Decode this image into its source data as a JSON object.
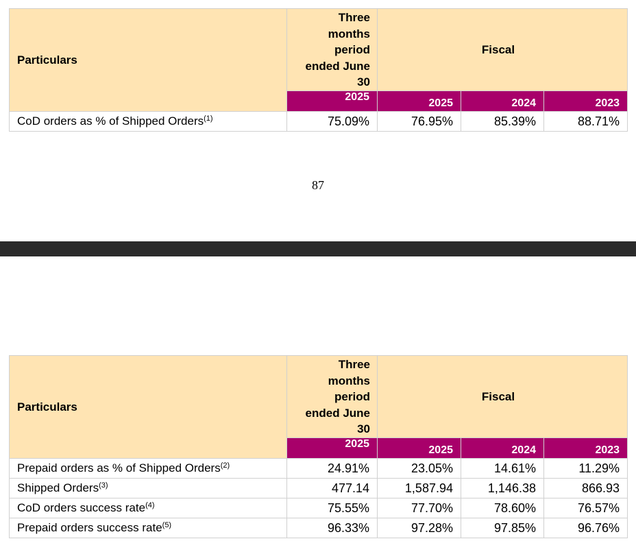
{
  "header": {
    "particulars": "Particulars",
    "three_months": [
      "Three",
      "months",
      "period",
      "ended June",
      "30"
    ],
    "fiscal": "Fiscal",
    "years": [
      "2025",
      "2025",
      "2024",
      "2023"
    ]
  },
  "table1": {
    "rows": [
      {
        "label": "CoD orders as % of Shipped Orders",
        "note": "(1)",
        "values": [
          "75.09%",
          "76.95%",
          "85.39%",
          "88.71%"
        ]
      }
    ]
  },
  "page_number": "87",
  "table2": {
    "rows": [
      {
        "label": "Prepaid orders as % of Shipped Orders",
        "note": "(2)",
        "values": [
          "24.91%",
          "23.05%",
          "14.61%",
          "11.29%"
        ]
      },
      {
        "label": "Shipped Orders",
        "note": "(3)",
        "values": [
          "477.14",
          "1,587.94",
          "1,146.38",
          "866.93"
        ]
      },
      {
        "label": "CoD orders success rate",
        "note": "(4)",
        "values": [
          "75.55%",
          "77.70%",
          "78.60%",
          "76.57%"
        ]
      },
      {
        "label": "Prepaid orders success rate",
        "note": "(5)",
        "values": [
          "96.33%",
          "97.28%",
          "97.85%",
          "96.76%"
        ]
      }
    ]
  },
  "colors": {
    "header_bg": "#ffe4b3",
    "year_bg": "#a8006a",
    "divider": "#2b2b2b"
  }
}
